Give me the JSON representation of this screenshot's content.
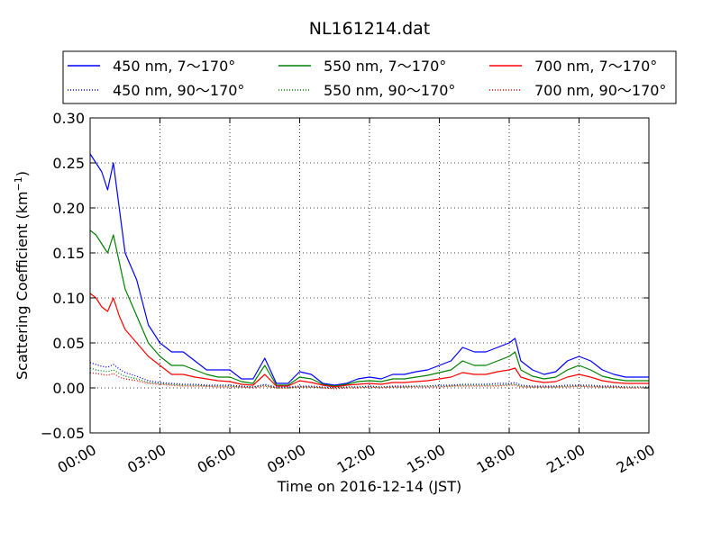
{
  "chart_data": {
    "type": "line",
    "title": "NL161214.dat",
    "xlabel": "Time on 2016-12-14 (JST)",
    "ylabel": "Scattering Coefficient (km",
    "ylabel_sup": "−1",
    "ylabel_close": ")",
    "xlim": [
      0,
      24
    ],
    "ylim": [
      -0.05,
      0.3
    ],
    "x_ticks": [
      0,
      3,
      6,
      9,
      12,
      15,
      18,
      21,
      24
    ],
    "x_tick_labels": [
      "00:00",
      "03:00",
      "06:00",
      "09:00",
      "12:00",
      "15:00",
      "18:00",
      "21:00",
      "24:00"
    ],
    "y_ticks": [
      -0.05,
      0.0,
      0.05,
      0.1,
      0.15,
      0.2,
      0.25,
      0.3
    ],
    "y_tick_labels": [
      "−0.05",
      "0.00",
      "0.05",
      "0.10",
      "0.15",
      "0.20",
      "0.25",
      "0.30"
    ],
    "grid": true,
    "legend_position": "top",
    "x": [
      0,
      0.25,
      0.5,
      0.75,
      1,
      1.25,
      1.5,
      2,
      2.5,
      3,
      3.5,
      4,
      4.5,
      5,
      5.5,
      6,
      6.5,
      7,
      7.5,
      8,
      8.5,
      9,
      9.5,
      10,
      10.5,
      11,
      11.5,
      12,
      12.5,
      13,
      13.5,
      14,
      14.5,
      15,
      15.5,
      16,
      16.5,
      17,
      17.5,
      18,
      18.25,
      18.5,
      19,
      19.5,
      20,
      20.5,
      21,
      21.5,
      22,
      22.5,
      23,
      23.5,
      24
    ],
    "series": [
      {
        "name": "450 nm, 7～170°",
        "color": "#0000ff",
        "style": "solid",
        "values": [
          0.26,
          0.25,
          0.24,
          0.22,
          0.25,
          0.2,
          0.15,
          0.12,
          0.07,
          0.05,
          0.04,
          0.04,
          0.03,
          0.02,
          0.02,
          0.02,
          0.01,
          0.01,
          0.033,
          0.005,
          0.005,
          0.018,
          0.015,
          0.005,
          0.003,
          0.005,
          0.01,
          0.012,
          0.01,
          0.015,
          0.015,
          0.018,
          0.02,
          0.025,
          0.03,
          0.045,
          0.04,
          0.04,
          0.045,
          0.05,
          0.055,
          0.03,
          0.02,
          0.015,
          0.018,
          0.03,
          0.035,
          0.03,
          0.02,
          0.015,
          0.012,
          0.012,
          0.012
        ]
      },
      {
        "name": "550 nm, 7～170°",
        "color": "#008000",
        "style": "solid",
        "values": [
          0.175,
          0.17,
          0.16,
          0.15,
          0.17,
          0.14,
          0.11,
          0.08,
          0.05,
          0.035,
          0.025,
          0.025,
          0.02,
          0.015,
          0.012,
          0.012,
          0.007,
          0.005,
          0.025,
          0.003,
          0.003,
          0.012,
          0.01,
          0.004,
          0.002,
          0.004,
          0.007,
          0.008,
          0.007,
          0.01,
          0.01,
          0.012,
          0.014,
          0.017,
          0.02,
          0.03,
          0.025,
          0.025,
          0.03,
          0.035,
          0.04,
          0.02,
          0.013,
          0.01,
          0.012,
          0.02,
          0.025,
          0.02,
          0.013,
          0.01,
          0.008,
          0.008,
          0.008
        ]
      },
      {
        "name": "700 nm, 7～170°",
        "color": "#ff0000",
        "style": "solid",
        "values": [
          0.105,
          0.1,
          0.09,
          0.085,
          0.1,
          0.08,
          0.065,
          0.05,
          0.035,
          0.025,
          0.015,
          0.015,
          0.012,
          0.01,
          0.008,
          0.007,
          0.004,
          0.003,
          0.015,
          0.002,
          0.002,
          0.008,
          0.006,
          0.003,
          0.001,
          0.003,
          0.004,
          0.005,
          0.004,
          0.006,
          0.006,
          0.007,
          0.008,
          0.01,
          0.012,
          0.017,
          0.015,
          0.015,
          0.018,
          0.02,
          0.022,
          0.012,
          0.008,
          0.006,
          0.007,
          0.012,
          0.015,
          0.012,
          0.008,
          0.006,
          0.005,
          0.005,
          0.005
        ]
      },
      {
        "name": "450 nm, 90～170°",
        "color": "#0000ff",
        "style": "dotted",
        "values": [
          0.028,
          0.026,
          0.024,
          0.023,
          0.026,
          0.021,
          0.017,
          0.013,
          0.008,
          0.006,
          0.005,
          0.004,
          0.004,
          0.003,
          0.003,
          0.003,
          0.002,
          0.001,
          0.004,
          0.001,
          0.001,
          0.002,
          0.002,
          0.001,
          0.0,
          0.001,
          0.001,
          0.002,
          0.001,
          0.002,
          0.002,
          0.002,
          0.002,
          0.003,
          0.003,
          0.004,
          0.004,
          0.004,
          0.005,
          0.005,
          0.006,
          0.003,
          0.002,
          0.002,
          0.002,
          0.003,
          0.003,
          0.003,
          0.002,
          0.002,
          0.001,
          0.001,
          0.001
        ]
      },
      {
        "name": "550 nm, 90～170°",
        "color": "#008000",
        "style": "dotted",
        "values": [
          0.022,
          0.02,
          0.019,
          0.018,
          0.02,
          0.016,
          0.013,
          0.01,
          0.006,
          0.005,
          0.004,
          0.003,
          0.003,
          0.002,
          0.002,
          0.002,
          0.001,
          0.001,
          0.003,
          0.0,
          0.0,
          0.001,
          0.001,
          0.0,
          0.0,
          0.001,
          0.001,
          0.001,
          0.001,
          0.001,
          0.001,
          0.002,
          0.002,
          0.002,
          0.002,
          0.003,
          0.003,
          0.003,
          0.003,
          0.004,
          0.004,
          0.002,
          0.001,
          0.001,
          0.001,
          0.002,
          0.002,
          0.002,
          0.001,
          0.001,
          0.001,
          0.001,
          0.001
        ]
      },
      {
        "name": "700 nm, 90～170°",
        "color": "#ff0000",
        "style": "dotted",
        "values": [
          0.017,
          0.016,
          0.015,
          0.014,
          0.016,
          0.012,
          0.01,
          0.008,
          0.005,
          0.004,
          0.003,
          0.002,
          0.002,
          0.002,
          0.001,
          0.001,
          0.001,
          0.0,
          0.002,
          0.0,
          0.0,
          0.001,
          0.001,
          0.0,
          -0.001,
          0.0,
          0.0,
          0.001,
          0.0,
          0.001,
          0.001,
          0.001,
          0.001,
          0.001,
          0.002,
          0.002,
          0.002,
          0.002,
          0.002,
          0.003,
          0.003,
          0.001,
          0.001,
          0.001,
          0.001,
          0.001,
          0.002,
          0.001,
          0.001,
          0.001,
          0.0,
          0.0,
          0.0
        ]
      }
    ]
  }
}
